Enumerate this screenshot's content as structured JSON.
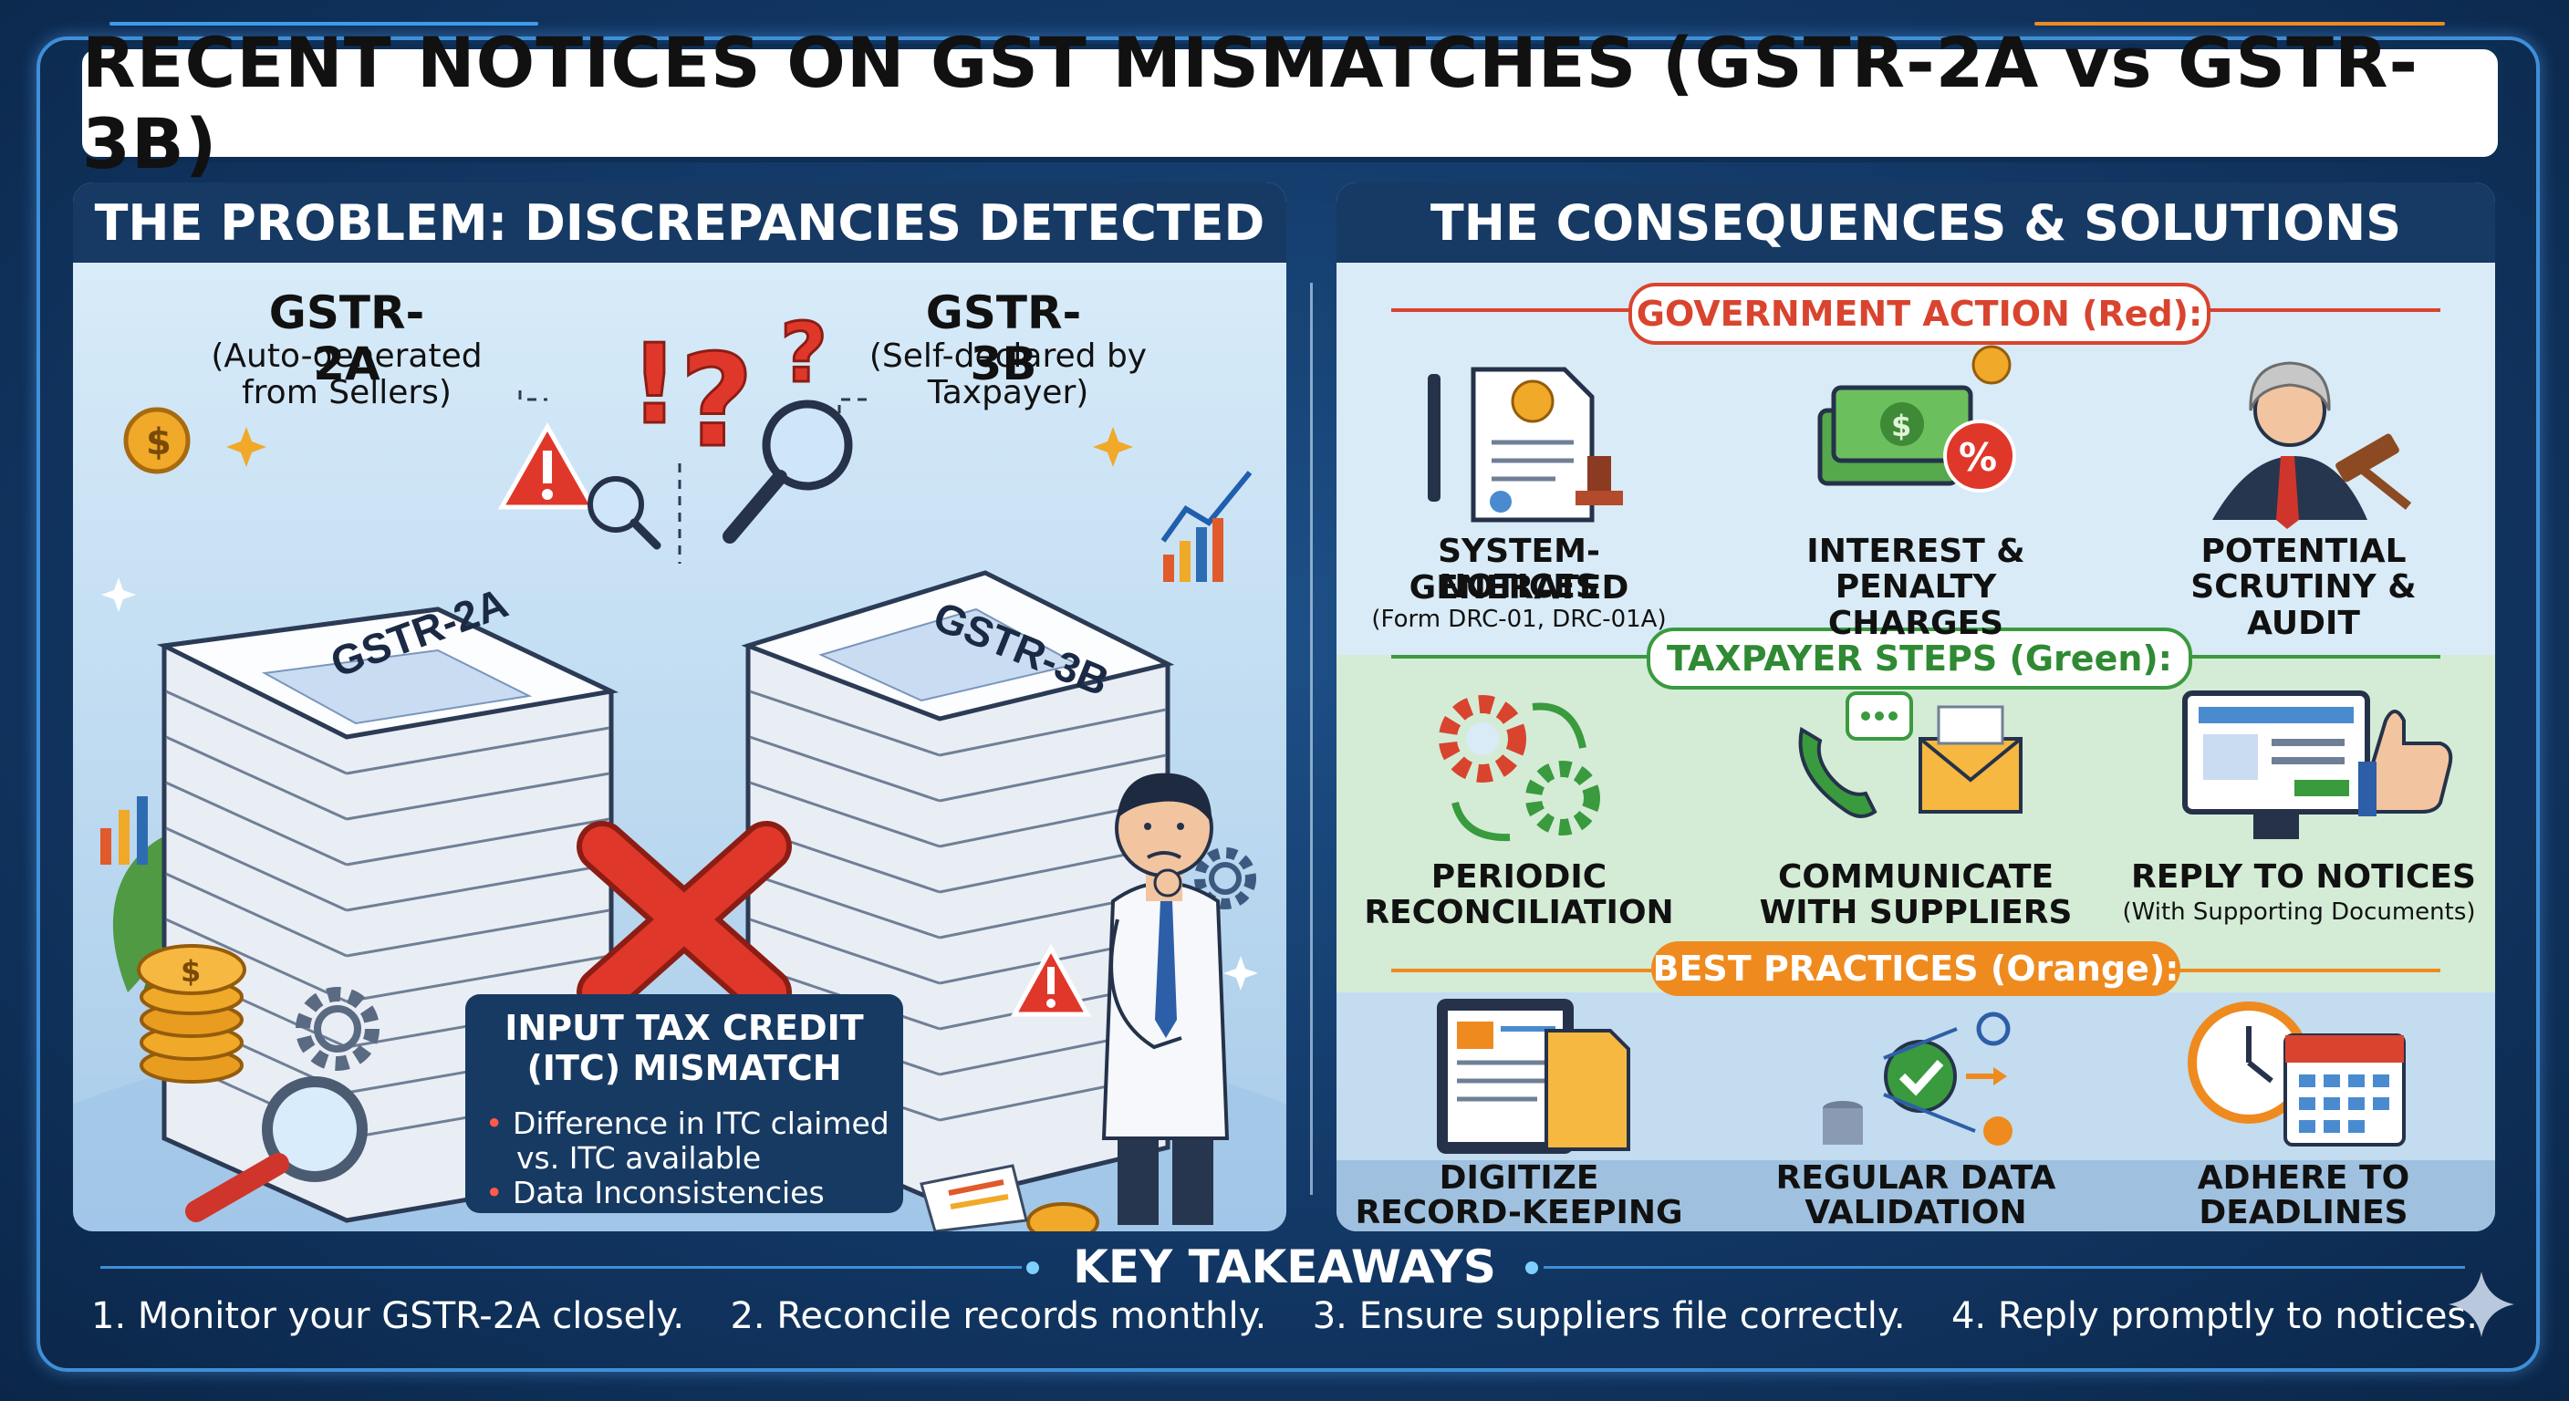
{
  "title": "RECENT NOTICES ON GST MISMATCHES (GSTR-2A vs GSTR-3B)",
  "left_panel": {
    "heading": "THE PROBLEM: DISCREPANCIES DETECTED",
    "gstr2a": {
      "title": "GSTR-2A",
      "subtitle_line1": "(Auto-generated",
      "subtitle_line2": "from Sellers)",
      "stack_label": "GSTR-2A"
    },
    "gstr3b": {
      "title": "GSTR-3B",
      "subtitle_line1": "(Self-declared by",
      "subtitle_line2": "Taxpayer)",
      "stack_label": "GSTR-3B"
    },
    "itc_box": {
      "title_line1": "INPUT TAX CREDIT",
      "title_line2": "(ITC) MISMATCH",
      "bullets": [
        "Difference in ITC claimed",
        "vs. ITC available",
        "Data Inconsistencies"
      ]
    }
  },
  "right_panel": {
    "heading": "THE CONSEQUENCES & SOLUTIONS",
    "sections": [
      {
        "banner": "GOVERNMENT ACTION (Red):",
        "color": "#d9442e",
        "items": [
          {
            "icon": "notice-document-icon",
            "label_line1": "SYSTEM-GENERATED",
            "label_line2": "NOTICES",
            "note": "(Form DRC-01, DRC-01A)"
          },
          {
            "icon": "money-percent-icon",
            "label_line1": "INTEREST &",
            "label_line2": "PENALTY CHARGES",
            "note": ""
          },
          {
            "icon": "judge-gavel-icon",
            "label_line1": "POTENTIAL",
            "label_line2": "SCRUTINY & AUDIT",
            "note": ""
          }
        ]
      },
      {
        "banner": "TAXPAYER STEPS (Green):",
        "color": "#3a9a3e",
        "items": [
          {
            "icon": "gears-cycle-icon",
            "label_line1": "PERIODIC",
            "label_line2": "RECONCILIATION",
            "note": ""
          },
          {
            "icon": "phone-mail-icon",
            "label_line1": "COMMUNICATE",
            "label_line2": "WITH SUPPLIERS",
            "note": ""
          },
          {
            "icon": "monitor-thumbs-up-icon",
            "label_line1": "REPLY TO NOTICES",
            "label_line2": "",
            "note": "(With Supporting Documents)"
          }
        ]
      },
      {
        "banner": "BEST PRACTICES (Orange):",
        "color": "#ef8a1f",
        "items": [
          {
            "icon": "tablet-documents-icon",
            "label_line1": "DIGITIZE",
            "label_line2": "RECORD-KEEPING",
            "note": ""
          },
          {
            "icon": "data-validation-icon",
            "label_line1": "REGULAR DATA",
            "label_line2": "VALIDATION",
            "note": ""
          },
          {
            "icon": "clock-calendar-icon",
            "label_line1": "ADHERE TO",
            "label_line2": "DEADLINES",
            "note": ""
          }
        ]
      }
    ]
  },
  "key_takeaways": {
    "title": "KEY TAKEAWAYS",
    "items": [
      "1. Monitor your GSTR-2A closely.",
      "2. Reconcile records monthly.",
      "3. Ensure suppliers file correctly.",
      "4. Reply promptly to notices."
    ]
  }
}
